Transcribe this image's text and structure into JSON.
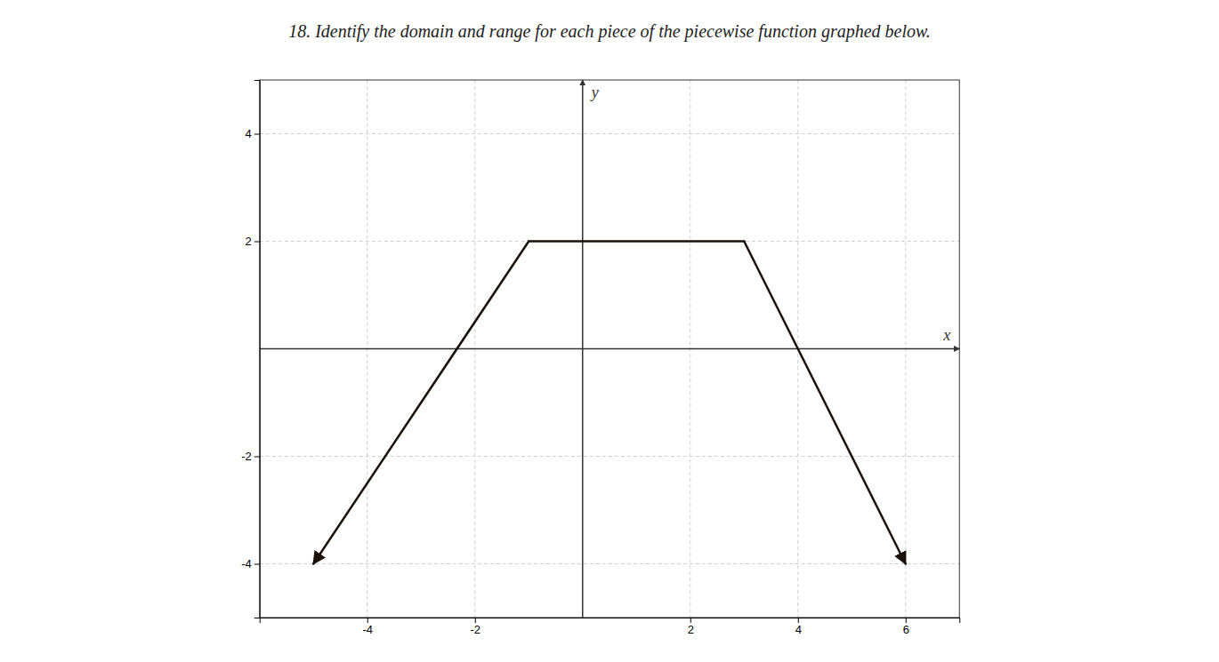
{
  "chart_data": {
    "type": "line",
    "title": "18. Identify the domain and range for each piece of the piecewise function graphed below.",
    "x_label": "x",
    "y_label": "y",
    "xlim": [
      -6,
      7
    ],
    "ylim": [
      -5,
      5
    ],
    "xticks": [
      -4,
      -2,
      2,
      4,
      6
    ],
    "yticks": [
      -4,
      -2,
      2,
      4
    ],
    "grid": true,
    "series": [
      {
        "color": "#1a1008",
        "marker": "arrow",
        "x": [
          -5,
          -1
        ],
        "values": [
          -4,
          2
        ]
      },
      {
        "color": "#1a1008",
        "x": [
          -1,
          3
        ],
        "values": [
          2,
          2
        ]
      },
      {
        "color": "#1a1008",
        "marker": "arrow",
        "x": [
          3,
          6
        ],
        "values": [
          2,
          -4
        ]
      }
    ]
  }
}
